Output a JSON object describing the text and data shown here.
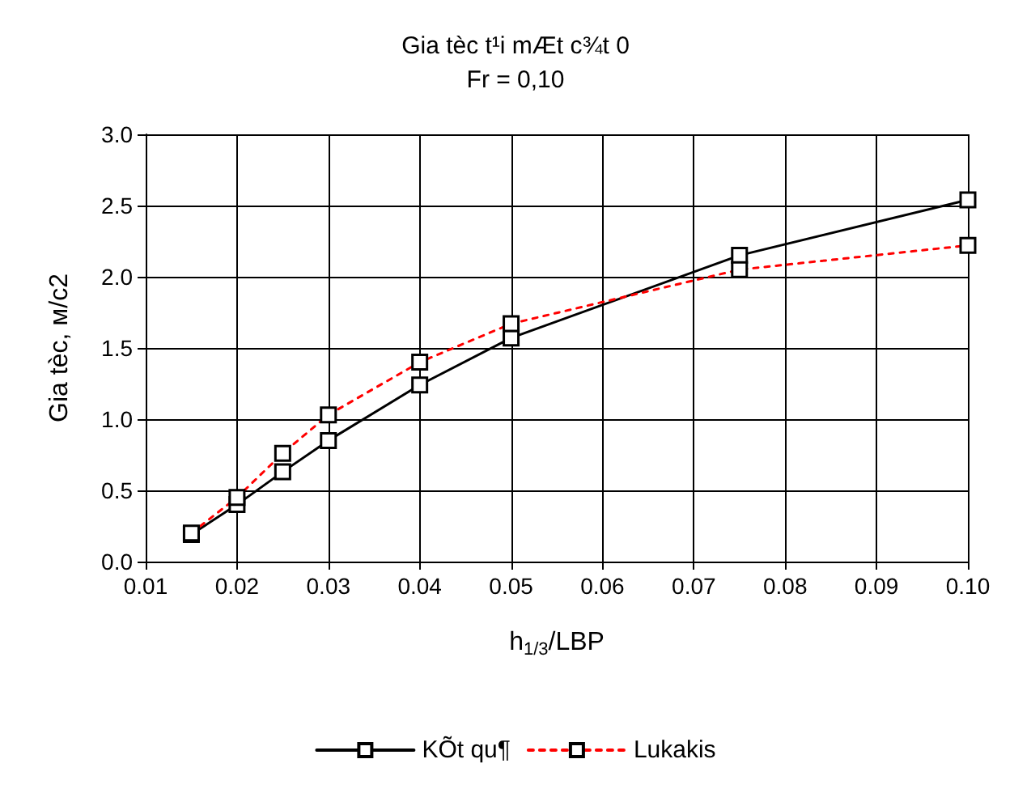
{
  "chart_data": {
    "type": "line",
    "title": "Gia tèc t¹i mÆt c¾t 0",
    "subtitle": "Fr = 0,10",
    "xlabel": "h$_{1/3}$/LBP",
    "ylabel": "Gia tèc, м/c2",
    "x": [
      0.015,
      0.02,
      0.025,
      0.03,
      0.04,
      0.05,
      0.075,
      0.1
    ],
    "series": [
      {
        "name": "KÕt qu¶",
        "color": "#000000",
        "line_style": "solid",
        "values": [
          0.19,
          0.4,
          0.63,
          0.85,
          1.24,
          1.57,
          2.15,
          2.54
        ]
      },
      {
        "name": "Lukakis",
        "color": "#ff0000",
        "line_style": "dotted",
        "values": [
          0.2,
          0.45,
          0.76,
          1.03,
          1.4,
          1.67,
          2.05,
          2.22
        ]
      }
    ],
    "xlim": [
      0.01,
      0.1
    ],
    "xticks": [
      0.01,
      0.02,
      0.03,
      0.04,
      0.05,
      0.06,
      0.07,
      0.08,
      0.09,
      {
        "value": 0.1,
        "label": "0.10"
      }
    ],
    "ylim": [
      0,
      3
    ],
    "yticks": [
      {
        "value": 0,
        "label": "0.0"
      },
      0.5,
      {
        "value": 1,
        "label": "1.0"
      },
      1.5,
      {
        "value": 2,
        "label": "2.0"
      },
      2.5,
      {
        "value": 3,
        "label": "3.0"
      }
    ],
    "grid": true,
    "legend": "bottom",
    "marker": "square"
  }
}
